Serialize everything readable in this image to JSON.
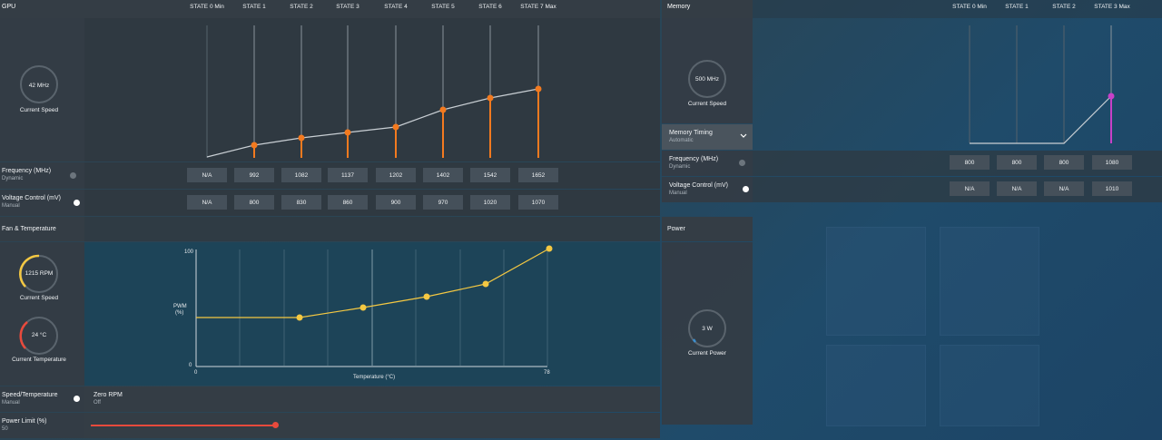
{
  "gpu": {
    "title": "GPU",
    "states": [
      "STATE 0 Min",
      "STATE 1",
      "STATE 2",
      "STATE 3",
      "STATE 4",
      "STATE 5",
      "STATE 6",
      "STATE 7 Max"
    ],
    "gauge": {
      "value": "42 MHz",
      "label": "Current Speed"
    },
    "frequency": {
      "label": "Frequency (MHz)",
      "mode": "Dynamic",
      "values": [
        "N/A",
        "992",
        "1082",
        "1137",
        "1202",
        "1402",
        "1542",
        "1652"
      ]
    },
    "voltage": {
      "label": "Voltage Control (mV)",
      "mode": "Manual",
      "values": [
        "N/A",
        "800",
        "830",
        "860",
        "900",
        "970",
        "1020",
        "1070"
      ]
    },
    "accent": "#f37a1f"
  },
  "fan": {
    "title": "Fan & Temperature",
    "rpm_gauge": {
      "value": "1215 RPM",
      "label": "Current Speed",
      "color": "#f4c842"
    },
    "temp_gauge": {
      "value": "24 °C",
      "label": "Current Temperature",
      "color": "#e84a3c"
    },
    "chart": {
      "ylabel_line1": "PWM",
      "ylabel_line2": "(%)",
      "xlabel": "Temperature (°C)",
      "y_top": "100",
      "y_bottom": "0",
      "x_left": "0",
      "x_right": "78"
    },
    "speed_temp": {
      "label": "Speed/Temperature",
      "mode": "Manual"
    },
    "zero_rpm": {
      "label": "Zero RPM",
      "mode": "Off"
    },
    "power_limit": {
      "label": "Power Limit (%)",
      "value": "50",
      "fill": 0.5
    }
  },
  "memory": {
    "title": "Memory",
    "states": [
      "STATE 0 Min",
      "STATE 1",
      "STATE 2",
      "STATE 3 Max"
    ],
    "gauge": {
      "value": "500 MHz",
      "label": "Current Speed"
    },
    "timing": {
      "label": "Memory Timing",
      "mode": "Automatic"
    },
    "frequency": {
      "label": "Frequency (MHz)",
      "mode": "Dynamic",
      "values": [
        "800",
        "800",
        "800",
        "1080"
      ]
    },
    "voltage": {
      "label": "Voltage Control (mV)",
      "mode": "Manual",
      "values": [
        "N/A",
        "N/A",
        "N/A",
        "1010"
      ]
    },
    "accent": "#c840c8"
  },
  "power": {
    "title": "Power",
    "gauge": {
      "value": "3 W",
      "label": "Current Power"
    }
  }
}
